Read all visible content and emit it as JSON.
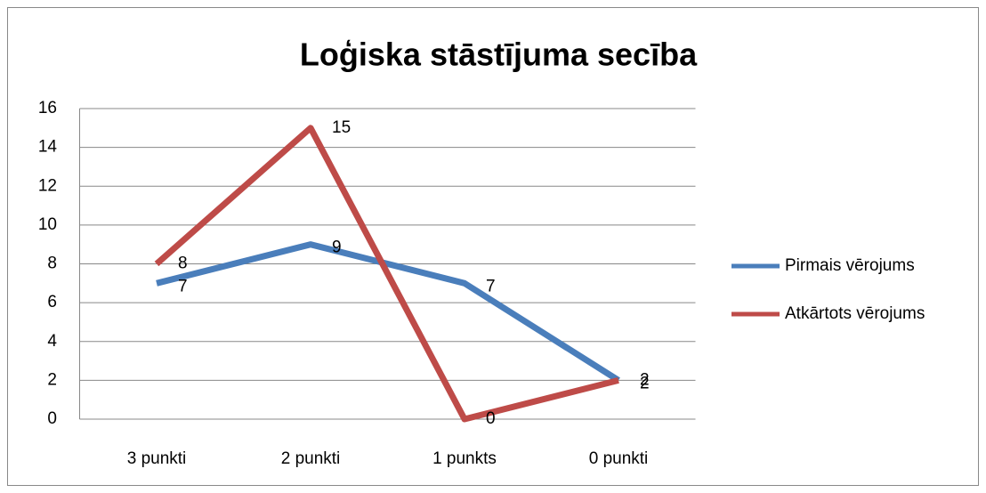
{
  "chart_data": {
    "type": "line",
    "title": "Loģiska stāstījuma secība",
    "categories": [
      "3 punkti",
      "2 punkti",
      "1 punkts",
      "0 punkti"
    ],
    "series": [
      {
        "name": "Pirmais vērojums",
        "color": "#4a7ebb",
        "values": [
          7,
          9,
          7,
          2
        ]
      },
      {
        "name": "Atkārtots vērojums",
        "color": "#be4b48",
        "values": [
          8,
          15,
          0,
          2
        ]
      }
    ],
    "ylim": [
      0,
      16
    ],
    "yticks": [
      0,
      2,
      4,
      6,
      8,
      10,
      12,
      14,
      16
    ],
    "grid": true,
    "legend": "right"
  }
}
